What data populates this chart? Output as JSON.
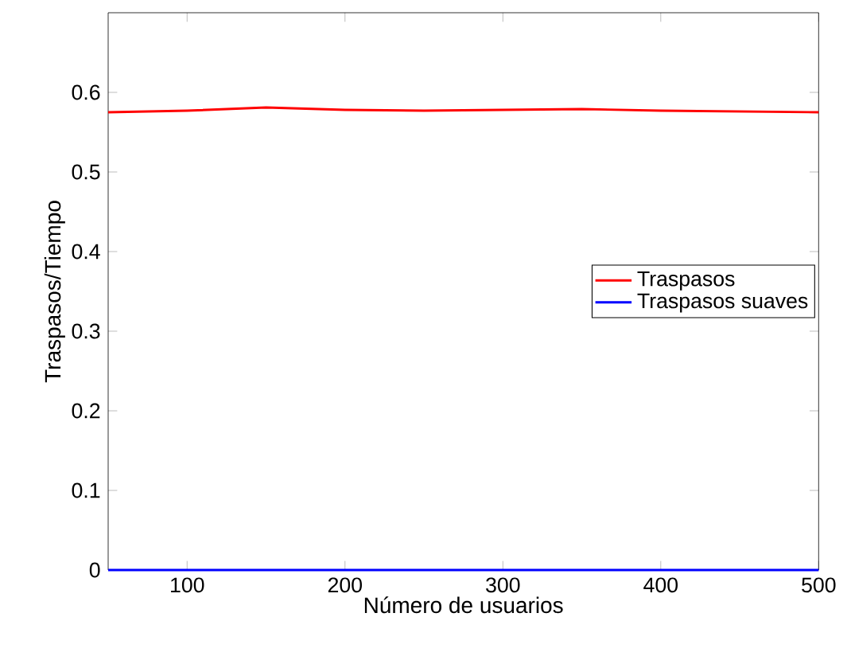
{
  "chart_data": {
    "type": "line",
    "xlabel": "Número de usuarios",
    "ylabel": "Traspasos/Tiempo",
    "x": [
      50,
      100,
      150,
      200,
      250,
      300,
      350,
      400,
      450,
      500
    ],
    "series": [
      {
        "name": "Traspasos",
        "color": "#ff0000",
        "values": [
          0.575,
          0.577,
          0.581,
          0.578,
          0.577,
          0.578,
          0.579,
          0.577,
          0.576,
          0.575
        ]
      },
      {
        "name": "Traspasos suaves",
        "color": "#0000ff",
        "values": [
          0,
          0,
          0,
          0,
          0,
          0,
          0,
          0,
          0,
          0
        ]
      }
    ],
    "xlim": [
      50,
      500
    ],
    "ylim": [
      0,
      0.7
    ],
    "xticks": [
      100,
      200,
      300,
      400,
      500
    ],
    "yticks": [
      0,
      0.1,
      0.2,
      0.3,
      0.4,
      0.5,
      0.6
    ],
    "grid": false,
    "legend": "right",
    "marker": "none",
    "line_style": "solid"
  }
}
